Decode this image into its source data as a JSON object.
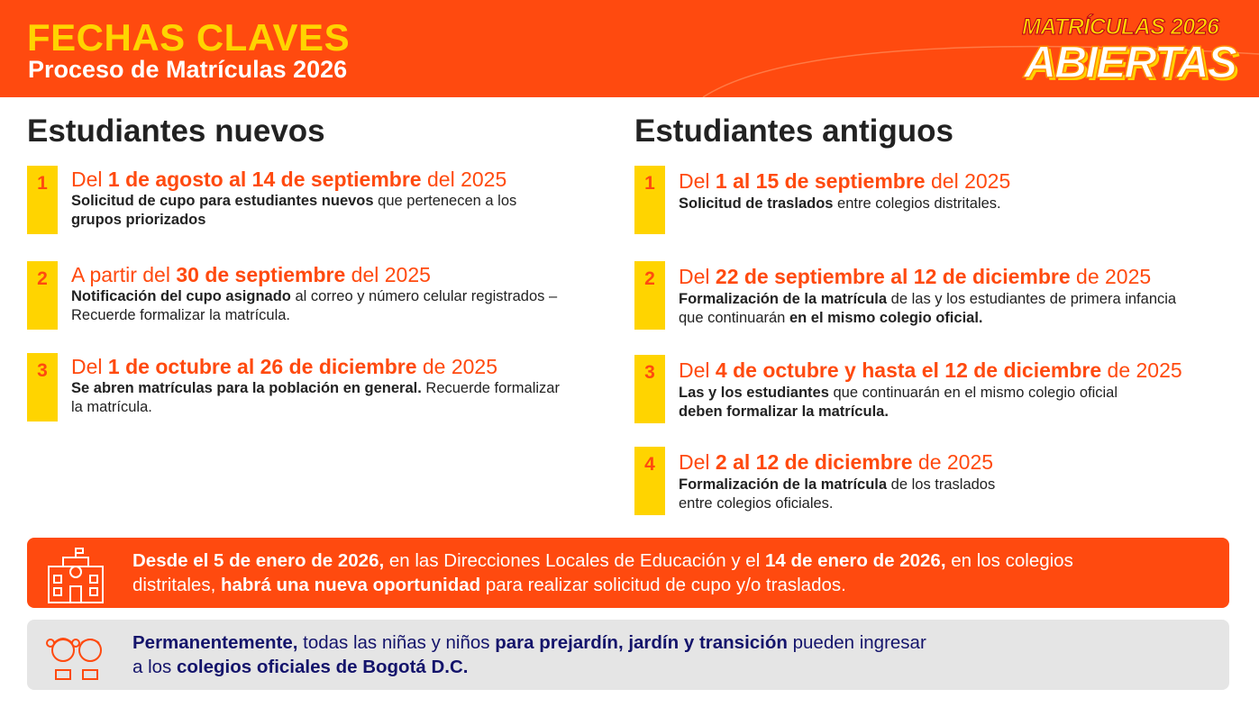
{
  "header": {
    "title": "FECHAS CLAVES",
    "subtitle": "Proceso de Matrículas 2026",
    "badge_top": "MATRÍCULAS 2026",
    "badge_bottom": "ABIERTAS"
  },
  "columns": [
    {
      "heading": "Estudiantes nuevos",
      "items": [
        {
          "number": 1,
          "date": [
            {
              "text": "Del "
            },
            {
              "text": "1 de agosto al 14 de septiembre",
              "bold": true
            },
            {
              "text": " del 2025"
            }
          ],
          "description": [
            [
              {
                "text": "Solicitud de cupo para estudiantes nuevos",
                "bold": true
              },
              {
                "text": " que pertenecen a los"
              }
            ],
            [
              {
                "text": "grupos priorizados",
                "bold": true
              }
            ]
          ]
        },
        {
          "number": 2,
          "date": [
            {
              "text": "A partir del "
            },
            {
              "text": "30 de septiembre",
              "bold": true
            },
            {
              "text": " del 2025"
            }
          ],
          "description": [
            [
              {
                "text": "Notificación del cupo asignado",
                "bold": true
              },
              {
                "text": " al correo y número celular registrados –"
              }
            ],
            [
              {
                "text": "Recuerde formalizar la matrícula."
              }
            ]
          ]
        },
        {
          "number": 3,
          "date": [
            {
              "text": "Del "
            },
            {
              "text": "1 de octubre al 26 de diciembre",
              "bold": true
            },
            {
              "text": " de 2025"
            }
          ],
          "description": [
            [
              {
                "text": "Se abren matrículas para la población en general.",
                "bold": true
              },
              {
                "text": " Recuerde formalizar"
              }
            ],
            [
              {
                "text": "la matrícula."
              }
            ]
          ]
        }
      ]
    },
    {
      "heading": "Estudiantes antiguos",
      "items": [
        {
          "number": 1,
          "date": [
            {
              "text": "Del "
            },
            {
              "text": "1 al 15 de septiembre",
              "bold": true
            },
            {
              "text": " del 2025"
            }
          ],
          "description": [
            [
              {
                "text": "Solicitud de traslados",
                "bold": true
              },
              {
                "text": " entre colegios distritales."
              }
            ]
          ]
        },
        {
          "number": 2,
          "date": [
            {
              "text": "Del "
            },
            {
              "text": "22 de septiembre al 12 de diciembre",
              "bold": true
            },
            {
              "text": " de 2025"
            }
          ],
          "description": [
            [
              {
                "text": "Formalización de la matrícula",
                "bold": true
              },
              {
                "text": " de las y los estudiantes de primera infancia"
              }
            ],
            [
              {
                "text": "que continuarán "
              },
              {
                "text": "en el mismo colegio oficial.",
                "bold": true
              }
            ]
          ]
        },
        {
          "number": 3,
          "date": [
            {
              "text": "Del "
            },
            {
              "text": "4 de octubre y hasta el 12 de diciembre",
              "bold": true
            },
            {
              "text": " de 2025"
            }
          ],
          "description": [
            [
              {
                "text": "Las y los estudiantes",
                "bold": true
              },
              {
                "text": " que continuarán en el mismo colegio oficial"
              }
            ],
            [
              {
                "text": "deben formalizar la matrícula.",
                "bold": true
              }
            ]
          ]
        },
        {
          "number": 4,
          "date": [
            {
              "text": "Del "
            },
            {
              "text": "2 al 12 de diciembre",
              "bold": true
            },
            {
              "text": " de 2025"
            }
          ],
          "description": [
            [
              {
                "text": "Formalización de la matrícula",
                "bold": true
              },
              {
                "text": " de los traslados"
              }
            ],
            [
              {
                "text": "entre colegios oficiales."
              }
            ]
          ]
        }
      ]
    }
  ],
  "banners": [
    {
      "lines": [
        [
          {
            "text": "Desde el 5 de enero de 2026,",
            "bold": true
          },
          {
            "text": " en las Direcciones Locales de Educación y el "
          },
          {
            "text": "14 de enero de 2026,",
            "bold": true
          },
          {
            "text": " en los colegios"
          }
        ],
        [
          {
            "text": "distritales, "
          },
          {
            "text": "habrá una nueva oportunidad",
            "bold": true
          },
          {
            "text": " para realizar solicitud de cupo y/o traslados."
          }
        ]
      ]
    },
    {
      "lines": [
        [
          {
            "text": "Permanentemente,",
            "bold": true
          },
          {
            "text": " todas las niñas y niños "
          },
          {
            "text": "para prejardín, jardín y transición",
            "bold": true
          },
          {
            "text": " pueden ingresar"
          }
        ],
        [
          {
            "text": "a los "
          },
          {
            "text": "colegios oficiales de Bogotá D.C.",
            "bold": true
          }
        ]
      ]
    }
  ]
}
